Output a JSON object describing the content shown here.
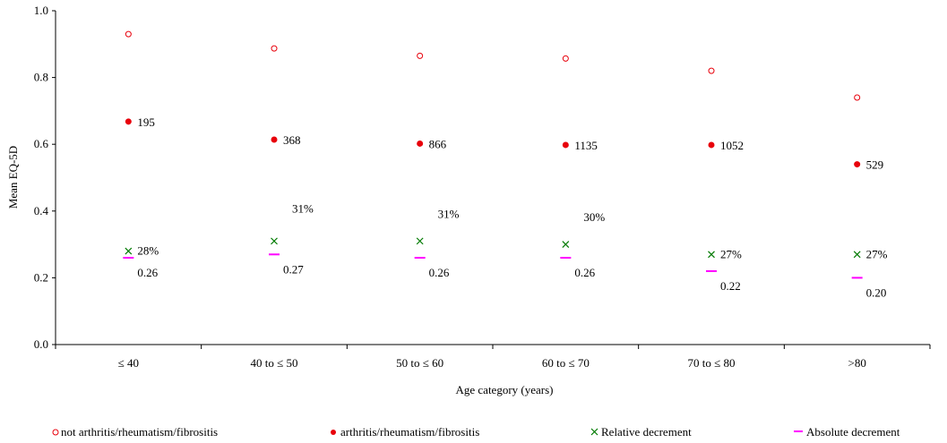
{
  "chart_data": {
    "type": "scatter",
    "xlabel": "Age category (years)",
    "ylabel": "Mean EQ-5D",
    "ylim": [
      0,
      1.0
    ],
    "yticks": [
      "0.0",
      "0.2",
      "0.4",
      "0.6",
      "0.8",
      "1.0"
    ],
    "categories": [
      "≤ 40",
      "40 to ≤ 50",
      "50 to ≤ 60",
      "60 to ≤ 70",
      "70 to ≤ 80",
      ">80"
    ],
    "grid": false,
    "legend_position": "bottom",
    "series": [
      {
        "name": "not arthritis/rheumatism/fibrositis",
        "marker": "open-circle",
        "color": "#e8000b",
        "values": [
          0.93,
          0.887,
          0.865,
          0.857,
          0.82,
          0.74
        ]
      },
      {
        "name": "arthritis/rheumatism/fibrositis",
        "marker": "filled-circle",
        "color": "#e8000b",
        "values": [
          0.668,
          0.614,
          0.602,
          0.598,
          0.598,
          0.54
        ],
        "labels": [
          "195",
          "368",
          "866",
          "1135",
          "1052",
          "529"
        ]
      },
      {
        "name": "Relative decrement",
        "marker": "x",
        "color": "#007a00",
        "values": [
          0.28,
          0.31,
          0.31,
          0.3,
          0.27,
          0.27
        ],
        "labels": [
          "28%",
          "31%",
          "31%",
          "30%",
          "27%",
          "27%"
        ]
      },
      {
        "name": "Absolute decrement",
        "marker": "dash",
        "color": "#ff00ff",
        "values": [
          0.26,
          0.27,
          0.26,
          0.26,
          0.22,
          0.2
        ],
        "labels": [
          "0.26",
          "0.27",
          "0.26",
          "0.26",
          "0.22",
          "0.20"
        ]
      }
    ]
  }
}
